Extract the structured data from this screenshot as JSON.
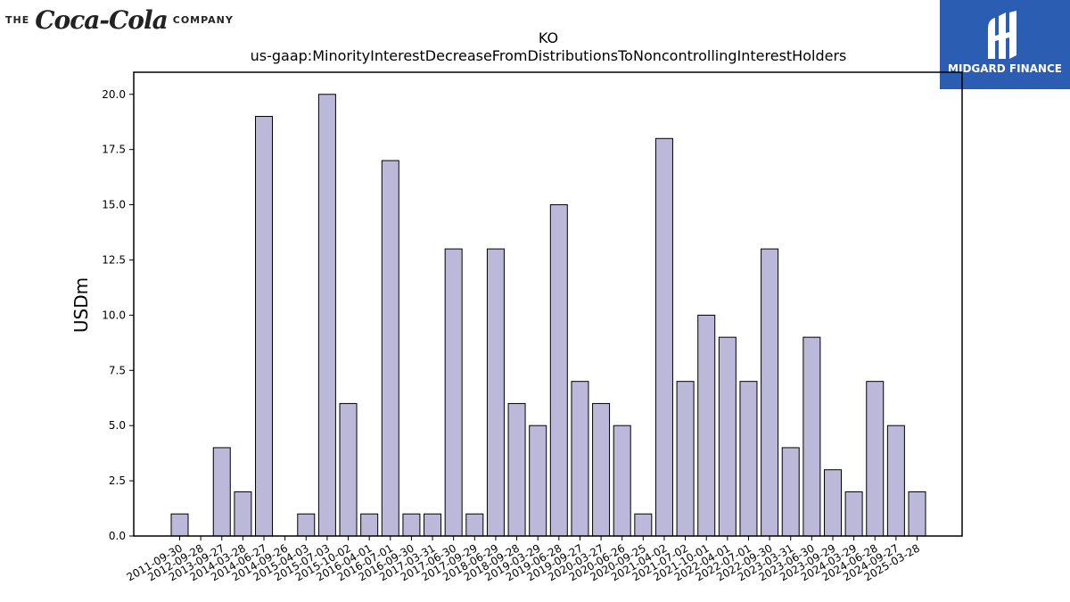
{
  "logos": {
    "left": {
      "prefix": "THE",
      "brand": "Coca-Cola",
      "suffix": "COMPANY"
    },
    "right": {
      "name": "MIDGARD FINANCE",
      "color": "#2b5db3"
    }
  },
  "chart_data": {
    "type": "bar",
    "title": "KO",
    "subtitle": "us-gaap:MinorityInterestDecreaseFromDistributionsToNoncontrollingInterestHolders",
    "xlabel": "",
    "ylabel": "USDm",
    "ylim": [
      0,
      21
    ],
    "yticks": [
      0.0,
      2.5,
      5.0,
      7.5,
      10.0,
      12.5,
      15.0,
      17.5,
      20.0
    ],
    "grid": false,
    "bar_color": "#bcb8da",
    "bar_edge_color": "#000000",
    "categories": [
      "2011-09-30",
      "2012-09-28",
      "2013-09-27",
      "2014-03-28",
      "2014-06-27",
      "2014-09-26",
      "2015-04-03",
      "2015-07-03",
      "2015-10-02",
      "2016-04-01",
      "2016-07-01",
      "2016-09-30",
      "2017-03-31",
      "2017-06-30",
      "2017-09-29",
      "2018-06-29",
      "2018-09-28",
      "2019-03-29",
      "2019-06-28",
      "2019-09-27",
      "2020-03-27",
      "2020-06-26",
      "2020-09-25",
      "2021-04-02",
      "2021-07-02",
      "2021-10-01",
      "2022-04-01",
      "2022-07-01",
      "2022-09-30",
      "2023-03-31",
      "2023-06-30",
      "2023-09-29",
      "2024-03-29",
      "2024-06-28",
      "2024-09-27",
      "2025-03-28"
    ],
    "values": [
      1,
      0,
      4,
      2,
      19,
      0,
      1,
      20,
      6,
      1,
      17,
      1,
      1,
      13,
      1,
      13,
      6,
      5,
      15,
      7,
      6,
      5,
      1,
      18,
      7,
      10,
      9,
      7,
      13,
      4,
      9,
      3,
      2,
      7,
      5,
      2
    ]
  }
}
